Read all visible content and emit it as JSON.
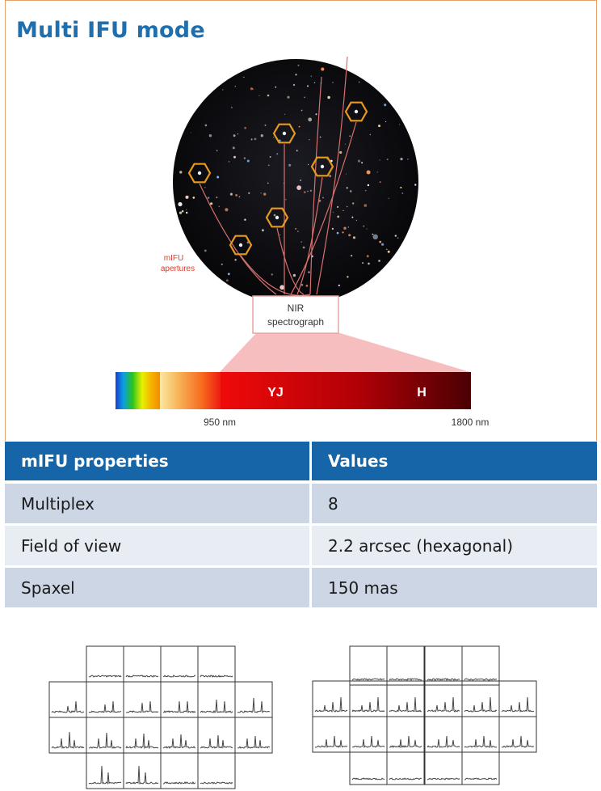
{
  "title": "Multi IFU mode",
  "diagram": {
    "apertures_label_line1": "mIFU",
    "apertures_label_line2": "apertures",
    "spectrograph_line1": "NIR",
    "spectrograph_line2": "spectrograph",
    "band_yj": "YJ",
    "band_h": "H",
    "wavelength_start": "950 nm",
    "wavelength_end": "1800 nm",
    "colors": {
      "hexagon": "#e79a1c",
      "fiber": "#d9706e",
      "label_red": "#e0392b",
      "box_border": "#e8a4a4",
      "wedge": "#f4b3b3"
    }
  },
  "table": {
    "headers": [
      "mIFU properties",
      "Values"
    ],
    "rows": [
      [
        "Multiplex",
        "8"
      ],
      [
        "Field of view",
        "2.2 arcsec (hexagonal)"
      ],
      [
        "Spaxel",
        "150 mas"
      ]
    ],
    "colors": {
      "header": "#1565a8",
      "odd": "#ccd6e4",
      "even": "#e8edf4"
    }
  }
}
